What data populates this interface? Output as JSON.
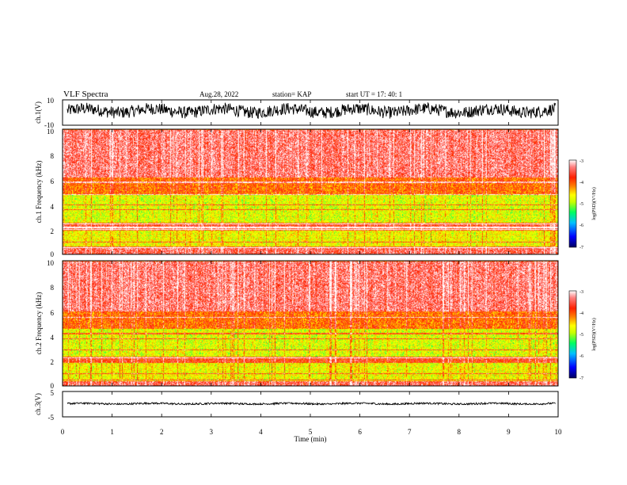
{
  "header": {
    "title": "VLF Spectra",
    "date": "Aug.28, 2022",
    "station": "station= KAP",
    "start_ut": "start  UT =   17: 40: 1"
  },
  "colors": {
    "spectrogram_scale": [
      "#000060",
      "#0000ff",
      "#00c0ff",
      "#00ff60",
      "#c8ff00",
      "#ffff00",
      "#ff8000",
      "#ff2000",
      "#ff8080",
      "#ffffff"
    ],
    "waveform": "#000000"
  },
  "chart_data": [
    {
      "type": "line",
      "name": "ch1-waveform",
      "ylabel": "ch.1(V)",
      "ylim": [
        -10,
        10
      ],
      "ytick_labels": [
        "10",
        "-10"
      ],
      "xlim": [
        0,
        10
      ],
      "approx_values": {
        "mean": 1.5,
        "range": [
          -8,
          10
        ]
      }
    },
    {
      "type": "heatmap",
      "name": "ch1-spectrogram",
      "ylabel": "ch.1 Frequency (kHz)",
      "ylim": [
        0,
        10
      ],
      "ytick_labels": [
        "0",
        "2",
        "4",
        "6",
        "8",
        "10"
      ],
      "xlim": [
        0,
        10
      ],
      "colorbar": {
        "label": "log(PSD)(V²/Hz)",
        "range": [
          -7,
          -3
        ],
        "tick_labels": [
          "-3",
          "-4",
          "-5",
          "-6",
          "-7"
        ]
      },
      "approx_levels_by_band_khz": [
        {
          "band": [
            0,
            0.6
          ],
          "level": -3.6
        },
        {
          "band": [
            0.6,
            2.0
          ],
          "level": -4.9
        },
        {
          "band": [
            2.0,
            2.5
          ],
          "level": -3.8
        },
        {
          "band": [
            2.5,
            4.8
          ],
          "level": -5.0
        },
        {
          "band": [
            4.8,
            6.2
          ],
          "level": -4.2
        },
        {
          "band": [
            6.2,
            10
          ],
          "level": -3.5
        }
      ],
      "approx_lines_khz": [
        0.6,
        1.0,
        2.0,
        2.2,
        2.5,
        3.6,
        4.0,
        4.8,
        5.8
      ]
    },
    {
      "type": "heatmap",
      "name": "ch2-spectrogram",
      "ylabel": "ch.2 Frequency (kHz)",
      "ylim": [
        0,
        10
      ],
      "ytick_labels": [
        "0",
        "2",
        "4",
        "6",
        "8",
        "10"
      ],
      "xlim": [
        0,
        10
      ],
      "colorbar": {
        "label": "log(PSD)(V²/Hz)",
        "range": [
          -7,
          -3
        ],
        "tick_labels": [
          "-3",
          "-4",
          "-5",
          "-6",
          "-7"
        ]
      },
      "approx_levels_by_band_khz": [
        {
          "band": [
            0,
            0.4
          ],
          "level": -3.6
        },
        {
          "band": [
            0.4,
            1.9
          ],
          "level": -4.9
        },
        {
          "band": [
            1.9,
            2.3
          ],
          "level": -3.9
        },
        {
          "band": [
            2.3,
            4.6
          ],
          "level": -5.0
        },
        {
          "band": [
            4.6,
            6.0
          ],
          "level": -4.2
        },
        {
          "band": [
            6.0,
            10
          ],
          "level": -3.5
        }
      ],
      "approx_lines_khz": [
        0.5,
        1.0,
        1.9,
        2.3,
        2.9,
        3.8,
        4.2,
        5.5
      ]
    },
    {
      "type": "line",
      "name": "ch3-waveform",
      "ylabel": "ch.3(V)",
      "ylim": [
        -5,
        5
      ],
      "ytick_labels": [
        "5",
        "-5"
      ],
      "xlim": [
        0,
        10
      ],
      "xlabel": "Time (min)",
      "xtick_labels": [
        "0",
        "1",
        "2",
        "3",
        "4",
        "5",
        "6",
        "7",
        "8",
        "9",
        "10"
      ],
      "approx_values": {
        "mean": 0.2,
        "range": [
          -0.2,
          0.6
        ]
      }
    }
  ]
}
